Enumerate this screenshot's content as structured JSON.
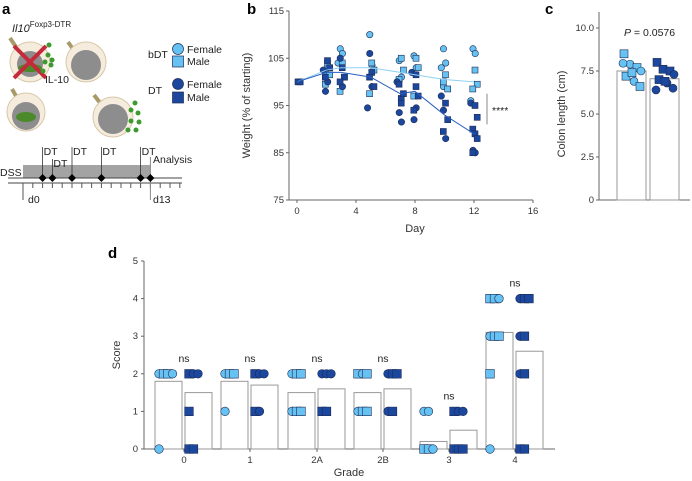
{
  "panel_labels": {
    "a": "a",
    "b": "b",
    "c": "c",
    "d": "d"
  },
  "colors": {
    "bDT": "#66c2f2",
    "DT": "#1b479e",
    "edge": "#1d2c55",
    "mean_bDT": "#8fd0f5",
    "mean_DT": "#2c5fc0",
    "axis": "#666666"
  },
  "panel_a": {
    "genotype": "Il10",
    "genotype_sup": "Foxp3-DTR",
    "cytokine": "IL-10",
    "cell_label": "Foxp3",
    "legend": {
      "bDT": {
        "label": "bDT",
        "female": "Female",
        "male": "Male"
      },
      "DT": {
        "label": "DT",
        "female": "Female",
        "male": "Male"
      }
    },
    "timeline": {
      "dss": "DSS",
      "dt_label": "DT",
      "dt_days": [
        2,
        3,
        5,
        8,
        12
      ],
      "analysis": "Analysis",
      "analysis_day": 13,
      "start": "d0",
      "end": "d13"
    }
  },
  "chart_data": [
    {
      "type": "scatter",
      "panel": "b",
      "xlabel": "Day",
      "ylabel": "Weight (% of starting)",
      "xlim": [
        0,
        16
      ],
      "xticks": [
        0,
        4,
        8,
        12,
        16
      ],
      "ylim": [
        75,
        115
      ],
      "yticks": [
        75,
        85,
        95,
        105,
        115
      ],
      "significance": "****",
      "series": [
        {
          "name": "bDT mean",
          "group": "bDT",
          "kind": "line",
          "x": [
            0,
            2,
            3,
            5,
            7,
            8,
            10,
            12
          ],
          "y": [
            100,
            102.5,
            103,
            103,
            102,
            101.5,
            100.5,
            100
          ]
        },
        {
          "name": "DT mean",
          "group": "DT",
          "kind": "line",
          "x": [
            0,
            2,
            3,
            5,
            7,
            8,
            10,
            12
          ],
          "y": [
            100,
            102,
            102,
            101,
            97.5,
            98,
            93,
            89
          ]
        },
        {
          "name": "bDT Female",
          "group": "bDT",
          "shape": "circle",
          "points": [
            [
              2,
              102
            ],
            [
              2,
              103
            ],
            [
              3,
              107
            ],
            [
              3,
              106
            ],
            [
              3,
              104
            ],
            [
              5,
              110
            ],
            [
              5,
              103.5
            ],
            [
              7,
              104.5
            ],
            [
              7,
              101
            ],
            [
              8,
              105.5
            ],
            [
              8,
              103
            ],
            [
              10,
              107
            ],
            [
              10,
              104
            ],
            [
              10,
              103
            ],
            [
              10,
              99
            ],
            [
              12,
              107
            ],
            [
              12,
              106
            ],
            [
              12,
              96
            ]
          ]
        },
        {
          "name": "bDT Male",
          "group": "bDT",
          "shape": "square",
          "points": [
            [
              2,
              104
            ],
            [
              2,
              101.5
            ],
            [
              2,
              99.5
            ],
            [
              3,
              104
            ],
            [
              3,
              101
            ],
            [
              3,
              98
            ],
            [
              5,
              104
            ],
            [
              5,
              102.5
            ],
            [
              5,
              97.5
            ],
            [
              7,
              105
            ],
            [
              7,
              102.5
            ],
            [
              7,
              100.5
            ],
            [
              8,
              105
            ],
            [
              8,
              103
            ],
            [
              8,
              97
            ],
            [
              10,
              101.5
            ],
            [
              10,
              98.5
            ],
            [
              10,
              100
            ],
            [
              12,
              102.5
            ],
            [
              12,
              99.5
            ],
            [
              12,
              98.5
            ]
          ]
        },
        {
          "name": "DT Female",
          "group": "DT",
          "shape": "circle",
          "points": [
            [
              2,
              98
            ],
            [
              2,
              100
            ],
            [
              2,
              102.5
            ],
            [
              3,
              105
            ],
            [
              3,
              99
            ],
            [
              5,
              106
            ],
            [
              5,
              99
            ],
            [
              5,
              94.5
            ],
            [
              7,
              93.5
            ],
            [
              7,
              91.5
            ],
            [
              7,
              100
            ],
            [
              8,
              92
            ],
            [
              8,
              94.5
            ],
            [
              8,
              102
            ],
            [
              10,
              94
            ],
            [
              10,
              88
            ],
            [
              10,
              97
            ],
            [
              12,
              85.5
            ],
            [
              12,
              85
            ],
            [
              12,
              95.5
            ]
          ]
        },
        {
          "name": "DT Male",
          "group": "DT",
          "shape": "square",
          "points": [
            [
              0,
              100
            ],
            [
              0,
              100
            ],
            [
              2,
              104.5
            ],
            [
              2,
              103
            ],
            [
              2,
              101
            ],
            [
              3,
              103
            ],
            [
              3,
              101
            ],
            [
              3,
              100
            ],
            [
              5,
              102
            ],
            [
              5,
              99
            ],
            [
              5,
              101
            ],
            [
              7,
              96.5
            ],
            [
              7,
              97.5
            ],
            [
              7,
              99.5
            ],
            [
              7,
              95.5
            ],
            [
              8,
              99
            ],
            [
              8,
              97
            ],
            [
              8,
              94
            ],
            [
              8,
              101.5
            ],
            [
              10,
              95.5
            ],
            [
              10,
              92
            ],
            [
              10,
              89.5
            ],
            [
              12,
              95
            ],
            [
              12,
              92.5
            ],
            [
              12,
              90
            ],
            [
              12,
              89
            ],
            [
              12,
              88
            ],
            [
              12,
              85
            ]
          ]
        }
      ]
    },
    {
      "type": "bar",
      "panel": "c",
      "ylabel": "Colon length (cm)",
      "ylim": [
        0,
        10.5
      ],
      "yticks": [
        "0",
        "2.5",
        "5.0",
        "7.5",
        "10.0"
      ],
      "p_label": "P",
      "p_value": "= 0.0576",
      "categories": [
        "bDT",
        "DT"
      ],
      "values": [
        7.5,
        7.05
      ],
      "points": {
        "bDT": [
          [
            8.5,
            "square"
          ],
          [
            7.9,
            "circle"
          ],
          [
            7.7,
            "square"
          ],
          [
            7.5,
            "circle"
          ],
          [
            7.2,
            "square"
          ],
          [
            6.9,
            "circle"
          ],
          [
            6.6,
            "square"
          ],
          [
            7.95,
            "circle"
          ],
          [
            7.4,
            "square"
          ]
        ],
        "DT": [
          [
            8.0,
            "square"
          ],
          [
            7.6,
            "square"
          ],
          [
            7.5,
            "square"
          ],
          [
            7.3,
            "circle"
          ],
          [
            7.0,
            "square"
          ],
          [
            6.8,
            "circle"
          ],
          [
            6.5,
            "circle"
          ],
          [
            6.4,
            "circle"
          ],
          [
            6.9,
            "square"
          ]
        ]
      }
    },
    {
      "type": "bar",
      "panel": "d",
      "xlabel": "Grade",
      "ylabel": "Score",
      "ylim": [
        0,
        5
      ],
      "yticks": [
        0,
        1,
        2,
        3,
        4,
        5
      ],
      "categories": [
        "0",
        "1",
        "2A",
        "2B",
        "3",
        "4"
      ],
      "annotations": [
        "ns",
        "ns",
        "ns",
        "ns",
        "ns",
        "ns"
      ],
      "series": [
        {
          "name": "bDT",
          "values": [
            1.8,
            1.8,
            1.5,
            1.5,
            0.2,
            3.1
          ]
        },
        {
          "name": "DT",
          "values": [
            1.5,
            1.7,
            1.6,
            1.6,
            0.5,
            2.6
          ]
        }
      ],
      "points": {
        "bDT": [
          [
            [
              2,
              "circle"
            ],
            [
              2,
              "square"
            ],
            [
              2,
              "square"
            ],
            [
              2,
              "circle"
            ],
            [
              0,
              "circle"
            ]
          ],
          [
            [
              2,
              "circle"
            ],
            [
              2,
              "square"
            ],
            [
              2,
              "square"
            ],
            [
              1,
              "circle"
            ]
          ],
          [
            [
              2,
              "circle"
            ],
            [
              2,
              "square"
            ],
            [
              2,
              "square"
            ],
            [
              1,
              "circle"
            ],
            [
              1,
              "square"
            ],
            [
              1,
              "square"
            ]
          ],
          [
            [
              2,
              "square"
            ],
            [
              2,
              "circle"
            ],
            [
              2,
              "square"
            ],
            [
              1,
              "circle"
            ],
            [
              1,
              "square"
            ],
            [
              1,
              "square"
            ]
          ],
          [
            [
              1,
              "circle"
            ],
            [
              1,
              "circle"
            ],
            [
              0,
              "square"
            ],
            [
              0,
              "square"
            ],
            [
              0,
              "circle"
            ]
          ],
          [
            [
              4,
              "square"
            ],
            [
              4,
              "square"
            ],
            [
              4,
              "circle"
            ],
            [
              3,
              "circle"
            ],
            [
              3,
              "square"
            ],
            [
              3,
              "square"
            ],
            [
              2,
              "square"
            ],
            [
              0,
              "circle"
            ]
          ]
        ],
        "DT": [
          [
            [
              2,
              "square"
            ],
            [
              2,
              "circle"
            ],
            [
              2,
              "circle"
            ],
            [
              1,
              "square"
            ],
            [
              0,
              "square"
            ],
            [
              0,
              "square"
            ]
          ],
          [
            [
              2,
              "square"
            ],
            [
              2,
              "circle"
            ],
            [
              2,
              "circle"
            ],
            [
              1,
              "square"
            ],
            [
              1,
              "circle"
            ]
          ],
          [
            [
              2,
              "circle"
            ],
            [
              2,
              "circle"
            ],
            [
              2,
              "circle"
            ],
            [
              1,
              "square"
            ],
            [
              1,
              "square"
            ]
          ],
          [
            [
              2,
              "circle"
            ],
            [
              2,
              "square"
            ],
            [
              2,
              "square"
            ],
            [
              1,
              "circle"
            ],
            [
              1,
              "square"
            ]
          ],
          [
            [
              1,
              "square"
            ],
            [
              1,
              "circle"
            ],
            [
              1,
              "circle"
            ],
            [
              0,
              "square"
            ],
            [
              0,
              "square"
            ],
            [
              0,
              "square"
            ]
          ],
          [
            [
              4,
              "circle"
            ],
            [
              4,
              "square"
            ],
            [
              4,
              "square"
            ],
            [
              3,
              "circle"
            ],
            [
              3,
              "square"
            ],
            [
              2,
              "circle"
            ],
            [
              2,
              "square"
            ],
            [
              0,
              "square"
            ],
            [
              0,
              "square"
            ]
          ]
        ]
      }
    }
  ]
}
